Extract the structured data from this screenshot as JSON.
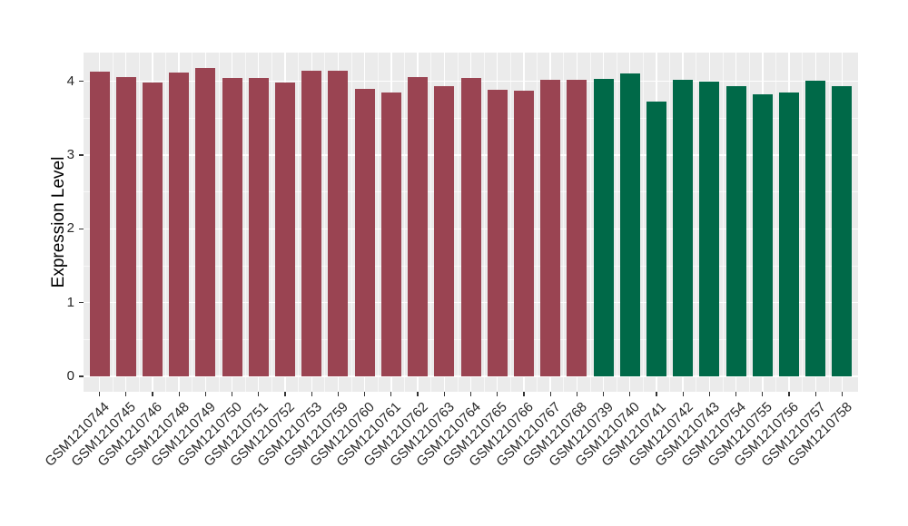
{
  "chart_data": {
    "type": "bar",
    "title": "",
    "xlabel": "",
    "ylabel": "Expression Level",
    "ylim": [
      0,
      4.39
    ],
    "y_major_ticks": [
      0,
      1,
      2,
      3,
      4
    ],
    "y_minor_ticks": [
      0.5,
      1.5,
      2.5,
      3.5
    ],
    "grid": "white major and minor gridlines on gray panel (ggplot style)",
    "legend_position": "none",
    "series": [
      {
        "name": "maroon-group",
        "color": "#9A4452",
        "categories": [
          "GSM1210744",
          "GSM1210745",
          "GSM1210746",
          "GSM1210748",
          "GSM1210749",
          "GSM1210750",
          "GSM1210751",
          "GSM1210752",
          "GSM1210753",
          "GSM1210759",
          "GSM1210760",
          "GSM1210761",
          "GSM1210762",
          "GSM1210763",
          "GSM1210764",
          "GSM1210765",
          "GSM1210766",
          "GSM1210767",
          "GSM1210768"
        ],
        "values": [
          4.13,
          4.06,
          3.99,
          4.12,
          4.18,
          4.04,
          4.04,
          3.99,
          4.14,
          4.15,
          3.9,
          3.85,
          4.06,
          3.93,
          4.05,
          3.88,
          3.87,
          4.02,
          4.02
        ]
      },
      {
        "name": "green-group",
        "color": "#006948",
        "categories": [
          "GSM1210739",
          "GSM1210740",
          "GSM1210741",
          "GSM1210742",
          "GSM1210743",
          "GSM1210754",
          "GSM1210755",
          "GSM1210756",
          "GSM1210757",
          "GSM1210758"
        ],
        "values": [
          4.03,
          4.11,
          3.73,
          4.02,
          4.0,
          3.94,
          3.83,
          3.85,
          4.01,
          3.93
        ]
      }
    ]
  },
  "style": {
    "panel_bg": "#EBEBEB",
    "grid_major_color": "#FFFFFF",
    "grid_minor_color": "rgba(255,255,255,0.65)",
    "tick_mark_color": "#333333",
    "tick_text_color": "#262626",
    "axis_title_color": "#000000"
  }
}
